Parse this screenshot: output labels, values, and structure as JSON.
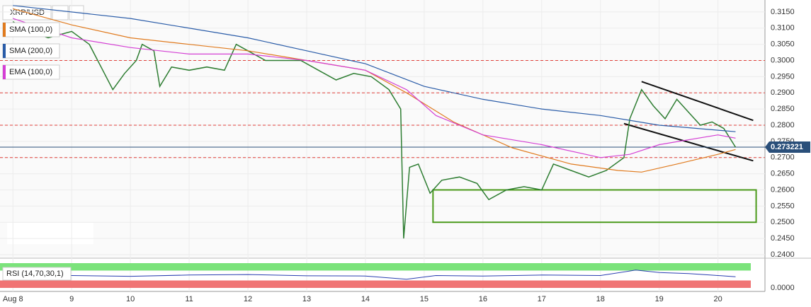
{
  "chart_data": {
    "type": "line",
    "title": "XRP/USD",
    "xlim": [
      7.78,
      20.8
    ],
    "xticks": [
      {
        "value": 8,
        "label": "Aug 8"
      },
      9,
      10,
      11,
      12,
      13,
      14,
      15,
      16,
      17,
      18,
      19,
      20
    ],
    "ylim": [
      0.2389,
      0.3187
    ],
    "yticks": [
      {
        "value": 0.24,
        "label": "0.2400"
      },
      {
        "value": 0.245,
        "label": "0.2450"
      },
      {
        "value": 0.25,
        "label": "0.2500"
      },
      {
        "value": 0.255,
        "label": "0.2550"
      },
      {
        "value": 0.26,
        "label": "0.2600"
      },
      {
        "value": 0.265,
        "label": "0.2650"
      },
      {
        "value": 0.27,
        "label": "0.2700"
      },
      {
        "value": 0.275,
        "label": "0.2750"
      },
      {
        "value": 0.28,
        "label": "0.2800"
      },
      {
        "value": 0.285,
        "label": "0.2850"
      },
      {
        "value": 0.29,
        "label": "0.2900"
      },
      {
        "value": 0.295,
        "label": "0.2950"
      },
      {
        "value": 0.3,
        "label": "0.3000"
      },
      {
        "value": 0.305,
        "label": "0.3050"
      },
      {
        "value": 0.31,
        "label": "0.3100"
      },
      {
        "value": 0.315,
        "label": "0.3150"
      }
    ],
    "grid": true,
    "series": [
      {
        "name": "XRP/USD",
        "color": "#2e7d32",
        "x": [
          8.0,
          8.3,
          8.6,
          9.0,
          9.3,
          9.5,
          9.7,
          9.9,
          10.1,
          10.2,
          10.4,
          10.5,
          10.7,
          11.0,
          11.3,
          11.6,
          11.8,
          12.0,
          12.3,
          12.6,
          12.9,
          13.2,
          13.5,
          13.8,
          14.1,
          14.4,
          14.6,
          14.65,
          14.75,
          14.9,
          15.1,
          15.3,
          15.6,
          15.9,
          16.1,
          16.4,
          16.7,
          17.0,
          17.2,
          17.5,
          17.8,
          18.1,
          18.4,
          18.5,
          18.7,
          18.9,
          19.1,
          19.3,
          19.5,
          19.7,
          19.9,
          20.1,
          20.3
        ],
        "values": [
          0.312,
          0.309,
          0.307,
          0.309,
          0.305,
          0.298,
          0.291,
          0.296,
          0.3,
          0.305,
          0.303,
          0.292,
          0.298,
          0.297,
          0.298,
          0.297,
          0.305,
          0.303,
          0.3,
          0.3,
          0.3,
          0.297,
          0.294,
          0.296,
          0.295,
          0.291,
          0.285,
          0.245,
          0.267,
          0.268,
          0.259,
          0.263,
          0.264,
          0.262,
          0.257,
          0.26,
          0.261,
          0.26,
          0.268,
          0.266,
          0.264,
          0.266,
          0.27,
          0.282,
          0.291,
          0.286,
          0.282,
          0.288,
          0.284,
          0.28,
          0.281,
          0.279,
          0.2732
        ]
      },
      {
        "name": "SMA (100,0)",
        "color": "#e07b1f",
        "x": [
          8,
          9,
          10,
          11,
          12,
          13,
          14,
          14.7,
          15.5,
          16.5,
          17.5,
          18.3,
          18.7,
          19.3,
          20,
          20.3
        ],
        "values": [
          0.316,
          0.311,
          0.307,
          0.305,
          0.303,
          0.3,
          0.297,
          0.29,
          0.281,
          0.273,
          0.268,
          0.266,
          0.2655,
          0.268,
          0.271,
          0.2725
        ]
      },
      {
        "name": "SMA (200,0)",
        "color": "#2a5ca8",
        "x": [
          8,
          10,
          12,
          13,
          14,
          15,
          16,
          17,
          18,
          19,
          20.3
        ],
        "values": [
          0.317,
          0.313,
          0.307,
          0.303,
          0.299,
          0.292,
          0.288,
          0.285,
          0.283,
          0.28,
          0.278
        ]
      },
      {
        "name": "EMA (100,0)",
        "color": "#d43fd4",
        "x": [
          8,
          9,
          10,
          11,
          12,
          13,
          14,
          14.7,
          15.2,
          16,
          17,
          18,
          18.5,
          19,
          20,
          20.3
        ],
        "values": [
          0.313,
          0.307,
          0.304,
          0.302,
          0.302,
          0.3,
          0.297,
          0.291,
          0.283,
          0.277,
          0.274,
          0.27,
          0.271,
          0.274,
          0.277,
          0.276
        ]
      }
    ],
    "horizontal_levels": [
      0.3,
      0.29,
      0.28,
      0.27
    ],
    "current_price": 0.273221,
    "support_zone": {
      "x": [
        15.15,
        20.65
      ],
      "y": [
        0.25,
        0.26
      ]
    },
    "channel": [
      {
        "x": [
          18.7,
          20.6
        ],
        "y": [
          0.2935,
          0.2815
        ]
      },
      {
        "x": [
          18.4,
          20.6
        ],
        "y": [
          0.2805,
          0.269
        ]
      }
    ],
    "rsi": {
      "label": "RSI (14,70,30,1)",
      "ylim": [
        0,
        100
      ],
      "bands": [
        70,
        30
      ],
      "yticks": [
        {
          "value": 0,
          "label": "0.0000"
        }
      ],
      "x": [
        8,
        9,
        10,
        11,
        12,
        13,
        14,
        14.7,
        15.2,
        16,
        17,
        18,
        18.6,
        19,
        19.5,
        20,
        20.3
      ],
      "values": [
        55,
        50,
        47,
        52,
        54,
        49,
        48,
        35,
        50,
        48,
        52,
        50,
        72,
        62,
        58,
        50,
        45
      ]
    }
  }
}
